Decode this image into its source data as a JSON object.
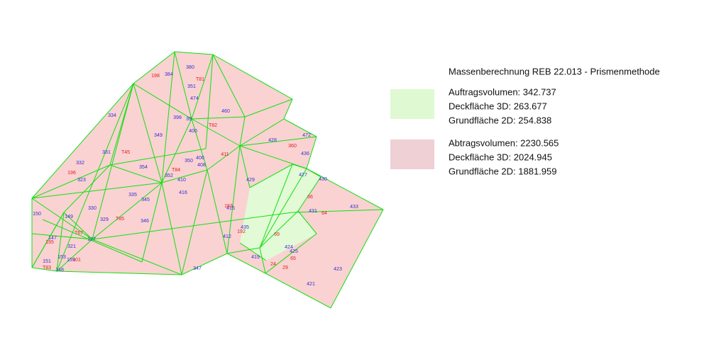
{
  "legend": {
    "title": "Massenberechnung REB 22.013 - Prismenmethode",
    "fill": {
      "volume": "Auftragsvolumen: 342.737",
      "surface_3d": "Deckfläche 3D: 263.677",
      "surface_2d": "Grundfläche 2D: 254.838"
    },
    "cut": {
      "volume": "Abtragsvolumen: 2230.565",
      "surface_3d": "Deckfläche 3D: 2024.945",
      "surface_2d": "Grundfläche 2D: 1881.959"
    }
  },
  "point_labels": [
    "380",
    "384",
    "351",
    "474",
    "460",
    "334",
    "398",
    "39",
    "400",
    "349",
    "428",
    "472",
    "331",
    "436",
    "332",
    "406",
    "408",
    "354",
    "427",
    "352",
    "410",
    "350",
    "429",
    "430",
    "323",
    "416",
    "335",
    "345",
    "330",
    "150",
    "415",
    "433",
    "149",
    "431",
    "329",
    "346",
    "435",
    "412",
    "147",
    "127",
    "321",
    "425",
    "424",
    "153",
    "159",
    "419",
    "151",
    "423",
    "347",
    "148",
    "421"
  ],
  "red_labels": [
    "198",
    "T81",
    "T82",
    "T45",
    "411",
    "360",
    "196",
    "T84",
    "183",
    "66",
    "64",
    "T85",
    "T67",
    "192",
    "195",
    "69",
    "101",
    "T83",
    "65",
    "24",
    "29"
  ]
}
